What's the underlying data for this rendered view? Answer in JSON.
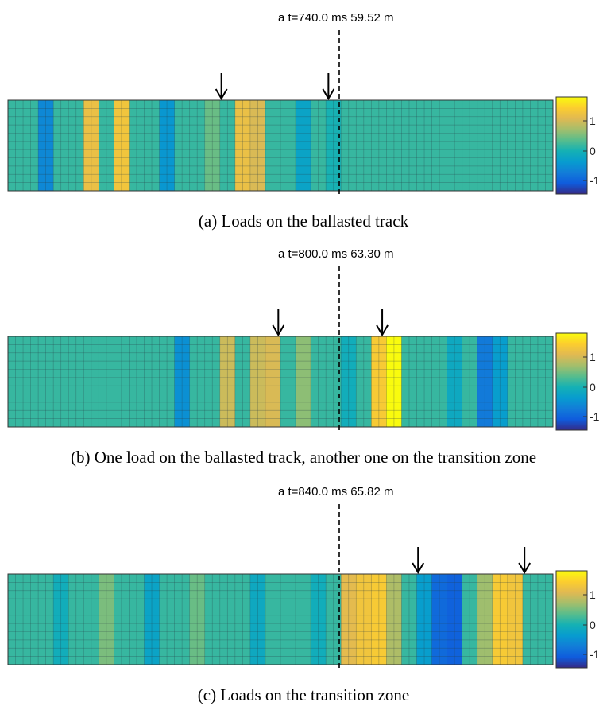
{
  "panels": [
    {
      "title": "a t=740.0 ms 59.52 m",
      "caption": "(a)  Loads on the ballasted track",
      "loads_x_m": [
        59.52,
        52.0
      ],
      "colorbar_ticks": [
        "1",
        "0",
        "-1"
      ],
      "field_bands": [
        {
          "col": 2,
          "level": -0.9
        },
        {
          "col": 5,
          "level": 1.2
        },
        {
          "col": 7,
          "level": 1.3
        },
        {
          "col": 10,
          "level": -0.7
        },
        {
          "col": 13,
          "level": 0.3
        },
        {
          "col": 15,
          "level": 1.2
        },
        {
          "col": 16,
          "level": 1.0
        },
        {
          "col": 19,
          "level": -0.5
        },
        {
          "col": 21,
          "level": -0.2
        }
      ]
    },
    {
      "title": "a t=800.0 ms 63.30 m",
      "caption": "(b)  One load on the ballasted track, another one on the transition zone",
      "loads_x_m": [
        63.3,
        56.0
      ],
      "colorbar_ticks": [
        "1",
        "0",
        "-1"
      ],
      "field_bands": [
        {
          "col": 11,
          "level": -0.8
        },
        {
          "col": 14,
          "level": 0.9
        },
        {
          "col": 16,
          "level": 0.9
        },
        {
          "col": 17,
          "level": 1.0
        },
        {
          "col": 19,
          "level": 0.5
        },
        {
          "col": 22,
          "level": -0.3
        },
        {
          "col": 24,
          "level": 1.4
        },
        {
          "col": 25,
          "level": 1.9
        },
        {
          "col": 29,
          "level": -0.4
        },
        {
          "col": 31,
          "level": -1.1
        },
        {
          "col": 32,
          "level": -0.6
        }
      ]
    },
    {
      "title": "a t=840.0 ms 65.82 m",
      "caption": "(c)  Loads on the transition zone",
      "loads_x_m": [
        65.82,
        73.3
      ],
      "colorbar_ticks": [
        "1",
        "0",
        "-1"
      ],
      "field_bands": [
        {
          "col": 3,
          "level": -0.3
        },
        {
          "col": 6,
          "level": 0.4
        },
        {
          "col": 9,
          "level": -0.5
        },
        {
          "col": 12,
          "level": 0.3
        },
        {
          "col": 16,
          "level": -0.4
        },
        {
          "col": 20,
          "level": -0.3
        },
        {
          "col": 22,
          "level": 1.1
        },
        {
          "col": 23,
          "level": 1.3
        },
        {
          "col": 24,
          "level": 1.4
        },
        {
          "col": 25,
          "level": 0.7
        },
        {
          "col": 27,
          "level": -0.6
        },
        {
          "col": 28,
          "level": -1.3
        },
        {
          "col": 29,
          "level": -1.4
        },
        {
          "col": 31,
          "level": 0.6
        },
        {
          "col": 32,
          "level": 1.4
        },
        {
          "col": 33,
          "level": 1.3
        }
      ]
    }
  ]
}
